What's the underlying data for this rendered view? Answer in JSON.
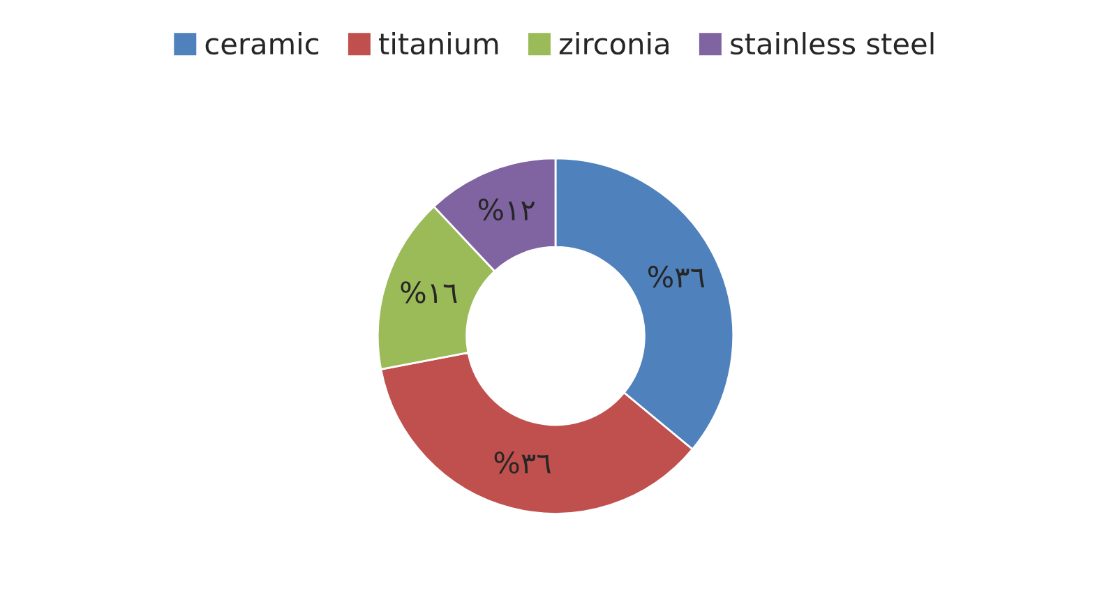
{
  "chart_data": {
    "type": "donut",
    "categories": [
      "ceramic",
      "titanium",
      "zirconia",
      "stainless steel"
    ],
    "values": [
      36,
      36,
      16,
      12
    ],
    "colors": [
      "#4f81bd",
      "#c0504d",
      "#9bbb59",
      "#8064a2"
    ],
    "value_labels": [
      "%٣٦",
      "%٣٦",
      "%١٦",
      "%١٢"
    ],
    "legend": "top"
  }
}
